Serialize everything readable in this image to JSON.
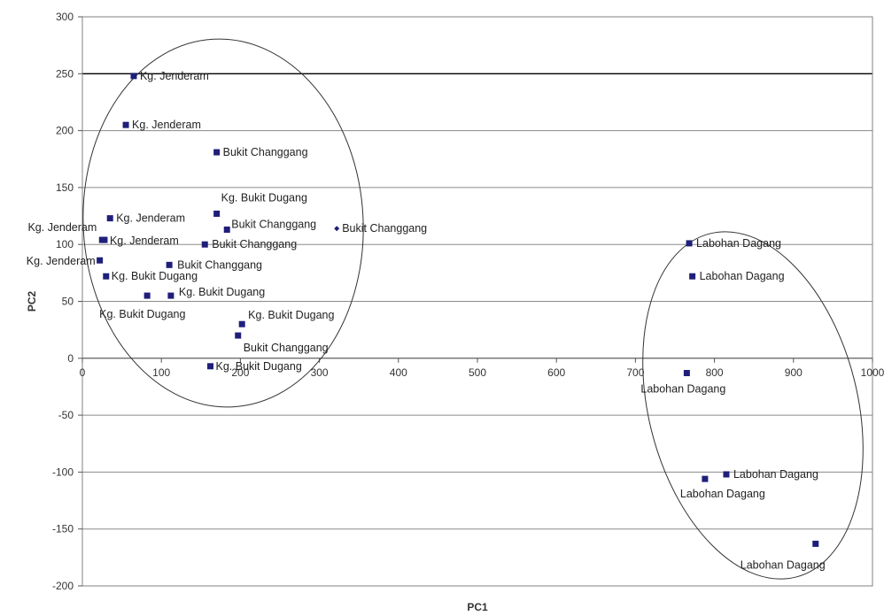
{
  "chart_data": {
    "type": "scatter",
    "title": "",
    "xlabel": "PC1",
    "ylabel": "PC2",
    "xlim": [
      0,
      1000
    ],
    "ylim": [
      -200,
      300
    ],
    "x_ticks": [
      0,
      100,
      200,
      300,
      400,
      500,
      600,
      700,
      800,
      900,
      1000
    ],
    "x_tick_labels": [
      "0",
      "100",
      "200",
      "300",
      "400",
      "500",
      "600",
      "700",
      "800",
      "900",
      "1000"
    ],
    "y_ticks": [
      300,
      250,
      200,
      150,
      100,
      50,
      0,
      -50,
      -100,
      -150,
      -200
    ],
    "y_tick_labels": [
      "300",
      "250",
      "200",
      "150",
      "100",
      "50",
      "0",
      "-50",
      "-100",
      "-150",
      "-200"
    ],
    "grid": "horizontal",
    "legend": "none",
    "marker_color": "#1f1f7a",
    "points": [
      {
        "x": 65,
        "y": 248,
        "label": "Kg. Jenderam"
      },
      {
        "x": 55,
        "y": 205,
        "label": "Kg. Jenderam"
      },
      {
        "x": 170,
        "y": 181,
        "label": "Bukit Changgang"
      },
      {
        "x": 170,
        "y": 127,
        "label": "Kg. Bukit Dugang"
      },
      {
        "x": 183,
        "y": 113,
        "label": "Bukit Changgang"
      },
      {
        "x": 322,
        "y": 114,
        "label": "Bukit Changgang"
      },
      {
        "x": 35,
        "y": 123,
        "label": "Kg. Jenderam"
      },
      {
        "x": 28,
        "y": 104,
        "label": "Kg. Jenderam"
      },
      {
        "x": 25,
        "y": 104,
        "label": "Kg. Jenderam"
      },
      {
        "x": 155,
        "y": 100,
        "label": "Bukit Changgang"
      },
      {
        "x": 110,
        "y": 82,
        "label": "Bukit Changgang"
      },
      {
        "x": 22,
        "y": 86,
        "label": "Kg. Jenderam"
      },
      {
        "x": 30,
        "y": 72,
        "label": "Kg. Bukit Dugang"
      },
      {
        "x": 82,
        "y": 55,
        "label": "Kg. Bukit Dugang"
      },
      {
        "x": 112,
        "y": 55,
        "label": "Kg. Bukit Dugang"
      },
      {
        "x": 202,
        "y": 30,
        "label": "Kg. Bukit Dugang"
      },
      {
        "x": 197,
        "y": 20,
        "label": "Bukit Changgang"
      },
      {
        "x": 162,
        "y": -7,
        "label": "Kg. Bukit Dugang"
      },
      {
        "x": 768,
        "y": 101,
        "label": "Labohan Dagang"
      },
      {
        "x": 772,
        "y": 72,
        "label": "Labohan Dagang"
      },
      {
        "x": 765,
        "y": -13,
        "label": "Labohan Dagang"
      },
      {
        "x": 815,
        "y": -102,
        "label": "Labohan Dagang"
      },
      {
        "x": 788,
        "y": -106,
        "label": "Labohan Dagang"
      },
      {
        "x": 928,
        "y": -163,
        "label": "Labohan Dagang"
      }
    ]
  }
}
